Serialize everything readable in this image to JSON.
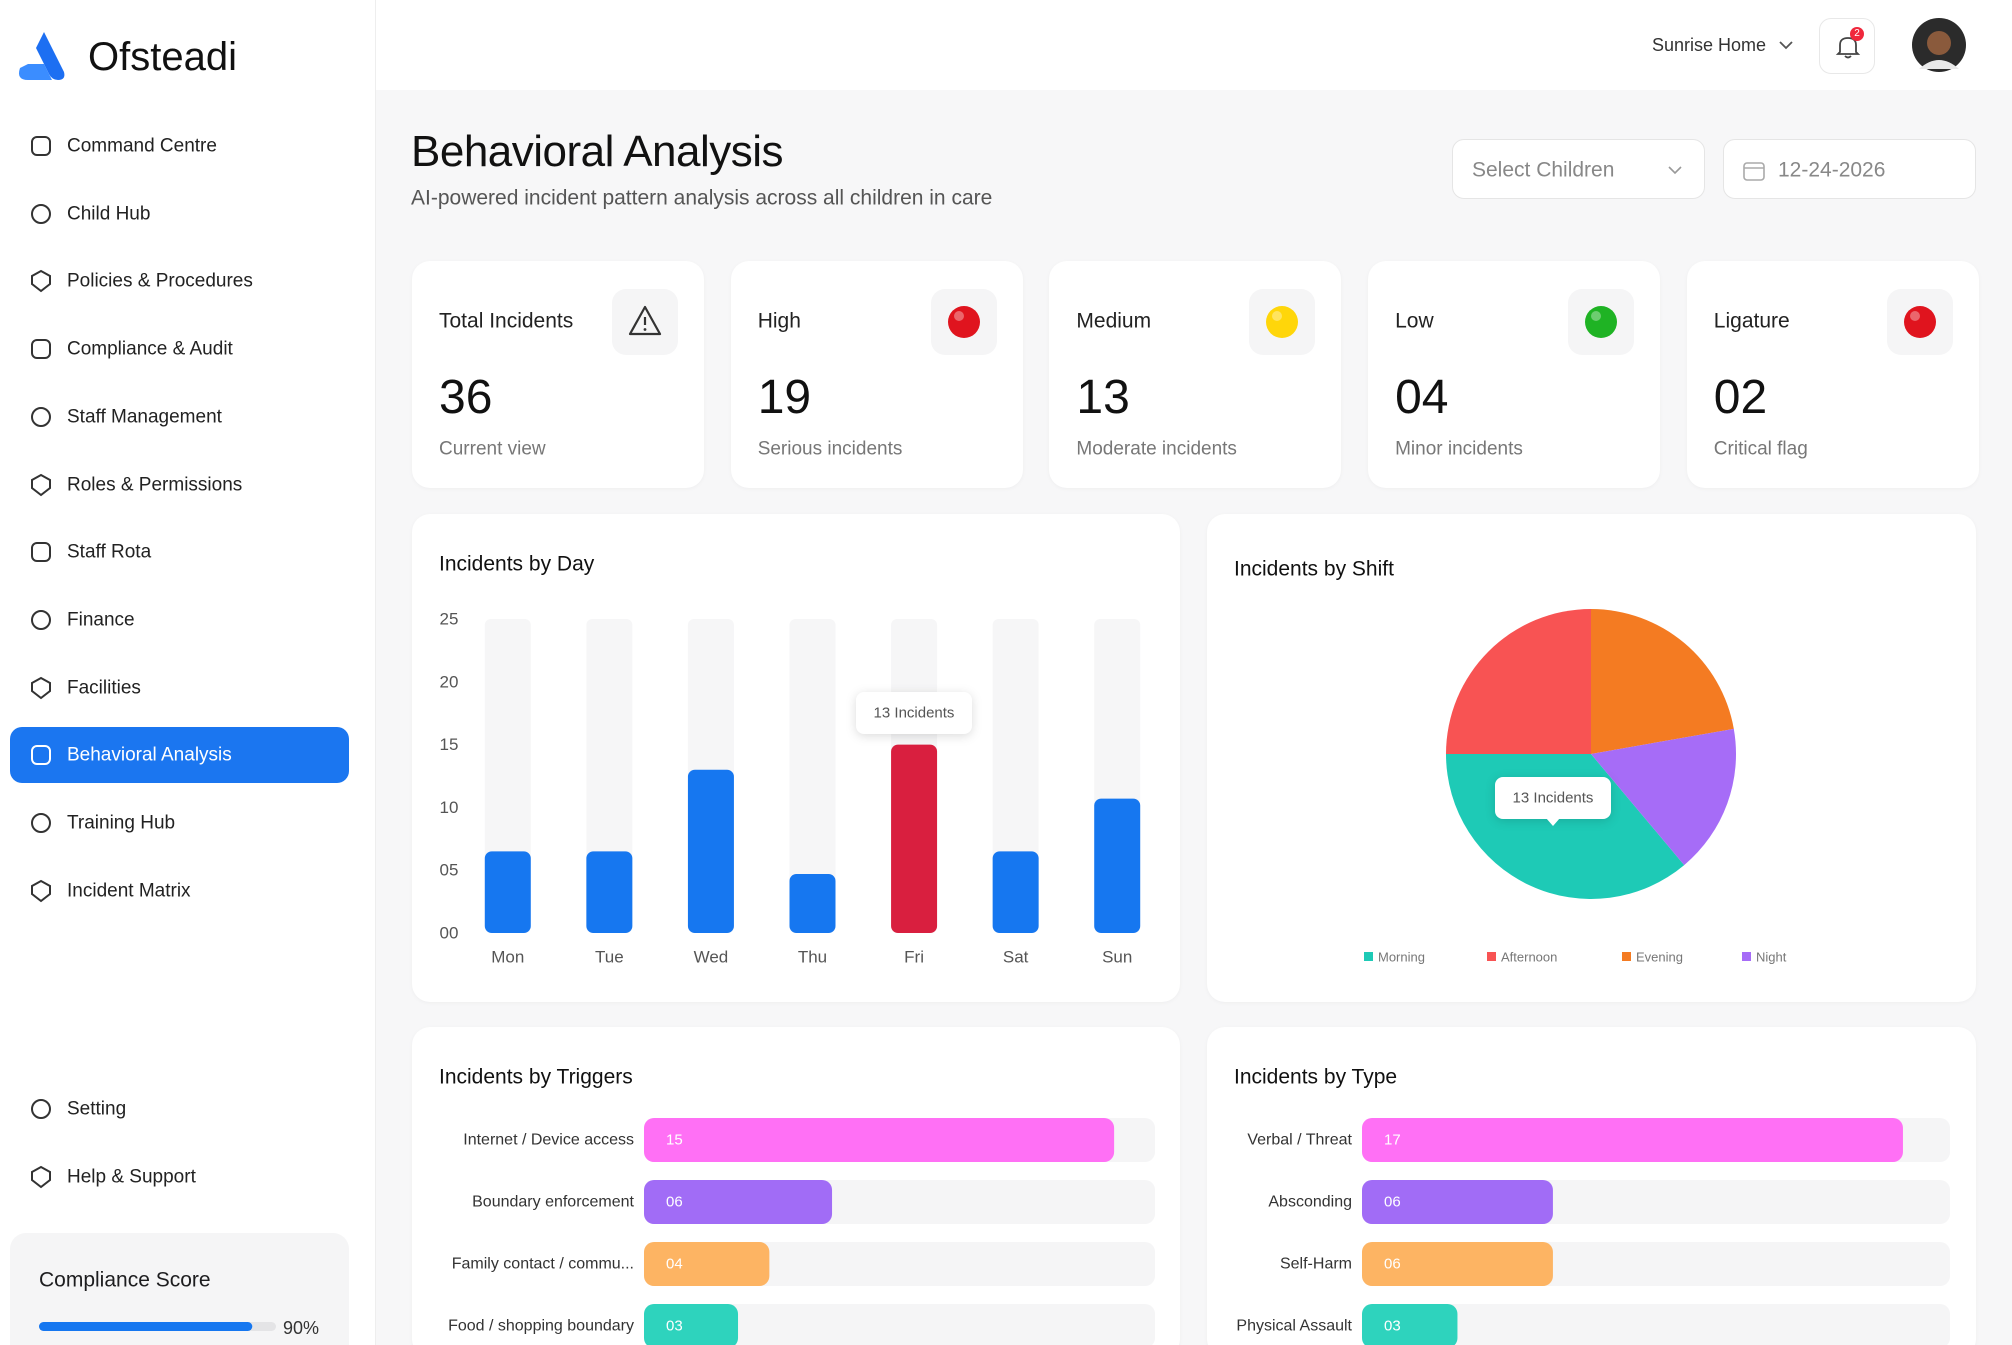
{
  "sidebar": {
    "brand": "Ofsteadi",
    "nav": [
      "Command Centre",
      "Child Hub",
      "Policies & Procedures",
      "Compliance & Audit",
      "Staff Management",
      "Roles & Permissions",
      "Staff Rota",
      "Finance",
      "Facilities",
      "Behavioral Analysis",
      "Training Hub",
      "Incident Matrix"
    ],
    "selected": "Behavioral Analysis",
    "footer_nav": [
      "Setting",
      "Help & Support"
    ],
    "compliance": {
      "title": "Compliance Score",
      "score": {
        "value": 90,
        "label": "90%"
      }
    }
  },
  "header": {
    "location": "Sunrise Home",
    "notifications": "2"
  },
  "page": {
    "title": "Behavioral Analysis",
    "subtitle": "AI-powered incident pattern analysis across all children in care",
    "filters": {
      "children": "Select Children",
      "date": "12-24-2026"
    }
  },
  "stats": [
    {
      "label": "Total Incidents",
      "value": "36",
      "note": "Current view"
    },
    {
      "label": "High",
      "value": "19",
      "note": "Serious incidents",
      "color": "#e0141e"
    },
    {
      "label": "Medium",
      "value": "13",
      "note": "Moderate incidents",
      "color": "#ffd60a"
    },
    {
      "label": "Low",
      "value": "04",
      "note": "Minor incidents",
      "color": "#1fb324"
    },
    {
      "label": "Ligature",
      "value": "02",
      "note": "Critical flag",
      "color": "#e0141e"
    }
  ],
  "chart_data": [
    {
      "type": "bar",
      "title": "Incidents by Day",
      "categories": [
        "Mon",
        "Tue",
        "Wed",
        "Thu",
        "Fri",
        "Sat",
        "Sun"
      ],
      "values": [
        6.5,
        6.5,
        13,
        4.7,
        15,
        6.5,
        10.7
      ],
      "colors": [
        "#1677f0",
        "#1677f0",
        "#1677f0",
        "#1677f0",
        "#d91f3f",
        "#1677f0",
        "#1677f0"
      ],
      "ylim": [
        0,
        25
      ],
      "yticks": [
        {
          "value": 0,
          "label": "00"
        },
        {
          "value": 5,
          "label": "05"
        },
        10,
        15,
        20,
        25
      ],
      "annotation": "13 Incidents"
    },
    {
      "type": "pie",
      "title": "Incidents by Shift",
      "categories": [
        "Morning",
        "Afternoon",
        "Evening",
        "Night"
      ],
      "values": [
        13,
        9,
        8,
        6
      ],
      "colors": [
        "#1ecab6",
        "#f85353",
        "#f47b22",
        "#a66cf7"
      ],
      "annotation": "13 Incidents"
    },
    {
      "type": "hbar",
      "title": "Incidents by Triggers",
      "categories": [
        "Internet / Device access",
        "Boundary enforcement",
        "Family contact / commu...",
        "Food / shopping boundary"
      ],
      "values": [
        15,
        6,
        4,
        3
      ],
      "value_labels": [
        "15",
        "06",
        "04",
        "03"
      ],
      "colors": [
        "#ff70f5",
        "#a16cf6",
        "#fdb463",
        "#2ed3bd"
      ]
    },
    {
      "type": "hbar",
      "title": "Incidents by Type",
      "categories": [
        "Verbal / Threat",
        "Absconding",
        "Self-Harm",
        "Physical Assault"
      ],
      "values": [
        17,
        6,
        6,
        3
      ],
      "value_labels": [
        "17",
        "06",
        "06",
        "03"
      ],
      "colors": [
        "#ff70f5",
        "#a16cf6",
        "#fdb463",
        "#2ed3bd"
      ]
    }
  ]
}
